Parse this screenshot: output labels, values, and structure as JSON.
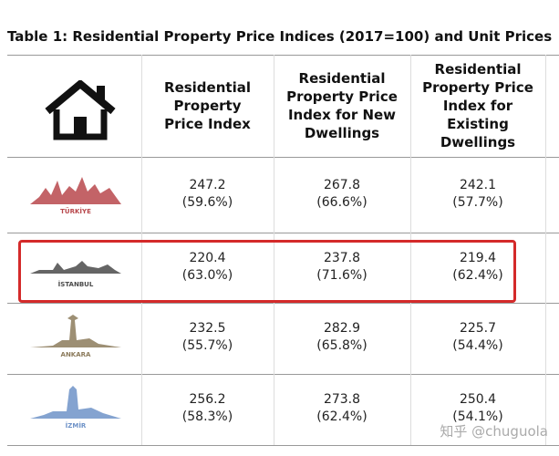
{
  "title": "Table 1: Residential Property Price Indices (2017=100) and Unit Prices",
  "table": {
    "columns": [
      "Residential Property Price Index",
      "Residential Property Price Index for New Dwellings",
      "Residential Property Price Index for Existing Dwellings"
    ],
    "rows": [
      {
        "city": "TÜRKİYE",
        "cells": [
          [
            "247.2",
            "(59.6%)"
          ],
          [
            "267.8",
            "(66.6%)"
          ],
          [
            "242.1",
            "(57.7%)"
          ]
        ]
      },
      {
        "city": "İSTANBUL",
        "cells": [
          [
            "220.4",
            "(63.0%)"
          ],
          [
            "237.8",
            "(71.6%)"
          ],
          [
            "219.4",
            "(62.4%)"
          ]
        ]
      },
      {
        "city": "ANKARA",
        "cells": [
          [
            "232.5",
            "(55.7%)"
          ],
          [
            "282.9",
            "(65.8%)"
          ],
          [
            "225.7",
            "(54.4%)"
          ]
        ]
      },
      {
        "city": "İZMİR",
        "cells": [
          [
            "256.2",
            "(58.3%)"
          ],
          [
            "273.8",
            "(62.4%)"
          ],
          [
            "250.4",
            "(54.1%)"
          ]
        ]
      }
    ]
  },
  "watermark": "知乎 @chuguola"
}
